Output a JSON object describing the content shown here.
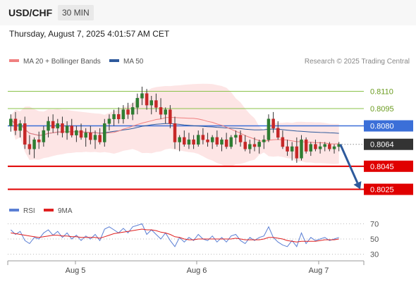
{
  "header": {
    "symbol": "USD/CHF",
    "timeframe": "30 MIN",
    "datetime": "Thursday, August 7, 2025 4:01:57 AM CET"
  },
  "legend": {
    "ma20": {
      "label": "MA 20 + Bollinger Bands",
      "color": "#f08080"
    },
    "ma50": {
      "label": "MA 50",
      "color": "#2e5a9c"
    }
  },
  "copyright": "Research © 2025 Trading Central",
  "rsi_legend": {
    "rsi": {
      "label": "RSI",
      "color": "#5b7fd4"
    },
    "ma9": {
      "label": "9MA",
      "color": "#e02020"
    }
  },
  "colors": {
    "up": "#2e7d32",
    "down": "#c62828",
    "resistance": "#8bc34a",
    "support": "#e00000",
    "pivot": "#3b6fd8",
    "arrow": "#2e5a9c",
    "current": "#333333"
  },
  "chart_data": [
    {
      "type": "candlestick",
      "x_tick_labels": [
        "Aug 5",
        "Aug 6",
        "Aug 7"
      ],
      "ylim": [
        0.8018,
        0.8128
      ],
      "levels": [
        {
          "value": 0.811,
          "label": "0.8110",
          "kind": "resistance"
        },
        {
          "value": 0.8095,
          "label": "0.8095",
          "kind": "resistance"
        },
        {
          "value": 0.808,
          "label": "0.8080",
          "kind": "pivot"
        },
        {
          "value": 0.8064,
          "label": "0.8064",
          "kind": "current"
        },
        {
          "value": 0.8045,
          "label": "0.8045",
          "kind": "support"
        },
        {
          "value": 0.8025,
          "label": "0.8025",
          "kind": "support"
        }
      ],
      "forecast": {
        "from": 0.8064,
        "to": 0.8025
      },
      "ohlc": [
        [
          0.808,
          0.809,
          0.8075,
          0.8086
        ],
        [
          0.8086,
          0.8092,
          0.8072,
          0.8076
        ],
        [
          0.8076,
          0.8085,
          0.807,
          0.8082
        ],
        [
          0.8082,
          0.8088,
          0.806,
          0.8064
        ],
        [
          0.8064,
          0.8072,
          0.8055,
          0.806
        ],
        [
          0.806,
          0.807,
          0.8052,
          0.8068
        ],
        [
          0.8068,
          0.8075,
          0.806,
          0.8066
        ],
        [
          0.8066,
          0.808,
          0.8062,
          0.8076
        ],
        [
          0.8076,
          0.8088,
          0.807,
          0.8084
        ],
        [
          0.8084,
          0.809,
          0.8074,
          0.8078
        ],
        [
          0.8078,
          0.8086,
          0.8072,
          0.8082
        ],
        [
          0.8082,
          0.8088,
          0.807,
          0.8074
        ],
        [
          0.8074,
          0.8084,
          0.8068,
          0.808
        ],
        [
          0.808,
          0.8086,
          0.807,
          0.8072
        ],
        [
          0.8072,
          0.808,
          0.8066,
          0.8076
        ],
        [
          0.8076,
          0.8082,
          0.8068,
          0.807
        ],
        [
          0.807,
          0.8078,
          0.8062,
          0.8074
        ],
        [
          0.8074,
          0.808,
          0.8064,
          0.8068
        ],
        [
          0.8068,
          0.8076,
          0.806,
          0.8072
        ],
        [
          0.8072,
          0.8078,
          0.8064,
          0.8066
        ],
        [
          0.8066,
          0.8086,
          0.8062,
          0.8082
        ],
        [
          0.8082,
          0.809,
          0.8076,
          0.8086
        ],
        [
          0.8086,
          0.8094,
          0.808,
          0.809
        ],
        [
          0.809,
          0.8096,
          0.8082,
          0.8086
        ],
        [
          0.8086,
          0.8098,
          0.8082,
          0.8094
        ],
        [
          0.8094,
          0.81,
          0.8086,
          0.809
        ],
        [
          0.809,
          0.81,
          0.8085,
          0.8096
        ],
        [
          0.8096,
          0.8108,
          0.809,
          0.8104
        ],
        [
          0.8104,
          0.8114,
          0.8098,
          0.8108
        ],
        [
          0.8108,
          0.8112,
          0.8094,
          0.8098
        ],
        [
          0.8098,
          0.8106,
          0.809,
          0.8102
        ],
        [
          0.8102,
          0.8108,
          0.8092,
          0.8096
        ],
        [
          0.8096,
          0.8104,
          0.8086,
          0.809
        ],
        [
          0.809,
          0.8096,
          0.8082,
          0.8094
        ],
        [
          0.8094,
          0.8098,
          0.8078,
          0.8082
        ],
        [
          0.8082,
          0.8088,
          0.806,
          0.8066
        ],
        [
          0.8066,
          0.8072,
          0.8058,
          0.807
        ],
        [
          0.807,
          0.8076,
          0.8062,
          0.8064
        ],
        [
          0.8064,
          0.8074,
          0.806,
          0.8068
        ],
        [
          0.8068,
          0.8072,
          0.806,
          0.8064
        ],
        [
          0.8064,
          0.8076,
          0.8062,
          0.8072
        ],
        [
          0.8072,
          0.8078,
          0.8064,
          0.8068
        ],
        [
          0.8068,
          0.8074,
          0.8062,
          0.8066
        ],
        [
          0.8066,
          0.8072,
          0.806,
          0.807
        ],
        [
          0.807,
          0.8076,
          0.8062,
          0.8064
        ],
        [
          0.8064,
          0.807,
          0.8058,
          0.8068
        ],
        [
          0.8068,
          0.8074,
          0.806,
          0.8062
        ],
        [
          0.8062,
          0.8072,
          0.806,
          0.807
        ],
        [
          0.807,
          0.8076,
          0.8064,
          0.8072
        ],
        [
          0.8072,
          0.8076,
          0.8062,
          0.8066
        ],
        [
          0.8066,
          0.8072,
          0.8058,
          0.806
        ],
        [
          0.806,
          0.8068,
          0.8056,
          0.8064
        ],
        [
          0.8064,
          0.807,
          0.8058,
          0.8062
        ],
        [
          0.8062,
          0.8068,
          0.8056,
          0.8066
        ],
        [
          0.8066,
          0.8072,
          0.806,
          0.8068
        ],
        [
          0.8068,
          0.809,
          0.8066,
          0.8086
        ],
        [
          0.8086,
          0.8092,
          0.8074,
          0.8078
        ],
        [
          0.8078,
          0.8084,
          0.8068,
          0.807
        ],
        [
          0.807,
          0.8076,
          0.806,
          0.8062
        ],
        [
          0.8062,
          0.8068,
          0.8054,
          0.8058
        ],
        [
          0.8058,
          0.8066,
          0.805,
          0.8062
        ],
        [
          0.8062,
          0.807,
          0.8048,
          0.8052
        ],
        [
          0.8052,
          0.8072,
          0.805,
          0.8068
        ],
        [
          0.8068,
          0.807,
          0.8056,
          0.8058
        ],
        [
          0.8058,
          0.8066,
          0.8054,
          0.8064
        ],
        [
          0.8064,
          0.8068,
          0.8058,
          0.806
        ],
        [
          0.806,
          0.8066,
          0.8056,
          0.8062
        ],
        [
          0.8062,
          0.8066,
          0.8058,
          0.8064
        ],
        [
          0.8064,
          0.8066,
          0.8058,
          0.806
        ],
        [
          0.806,
          0.8064,
          0.8056,
          0.8062
        ],
        [
          0.8062,
          0.8066,
          0.8058,
          0.8064
        ]
      ]
    },
    {
      "type": "line",
      "title": "RSI",
      "y_ticks": [
        70,
        50,
        30
      ],
      "ylim": [
        25,
        75
      ],
      "series": [
        {
          "name": "RSI",
          "values": [
            62,
            56,
            60,
            48,
            44,
            52,
            50,
            58,
            62,
            55,
            60,
            52,
            58,
            50,
            55,
            48,
            54,
            50,
            56,
            48,
            63,
            66,
            62,
            58,
            64,
            58,
            66,
            68,
            70,
            56,
            62,
            56,
            50,
            58,
            48,
            40,
            52,
            46,
            52,
            48,
            56,
            50,
            48,
            54,
            46,
            52,
            46,
            54,
            56,
            48,
            44,
            52,
            48,
            52,
            54,
            66,
            52,
            46,
            42,
            40,
            48,
            40,
            58,
            44,
            52,
            48,
            50,
            52,
            48,
            50,
            52
          ]
        },
        {
          "name": "9MA",
          "values": [
            58,
            57,
            56,
            55,
            54,
            53,
            52,
            53,
            54,
            55,
            55,
            54,
            54,
            53,
            53,
            52,
            52,
            52,
            52,
            51,
            53,
            55,
            57,
            58,
            59,
            60,
            61,
            62,
            63,
            62,
            62,
            61,
            59,
            58,
            56,
            53,
            52,
            50,
            49,
            49,
            50,
            50,
            50,
            50,
            50,
            50,
            50,
            50,
            51,
            50,
            49,
            49,
            49,
            49,
            50,
            52,
            52,
            51,
            50,
            48,
            47,
            46,
            47,
            47,
            47,
            47,
            48,
            49,
            49,
            49,
            50
          ]
        }
      ]
    }
  ]
}
